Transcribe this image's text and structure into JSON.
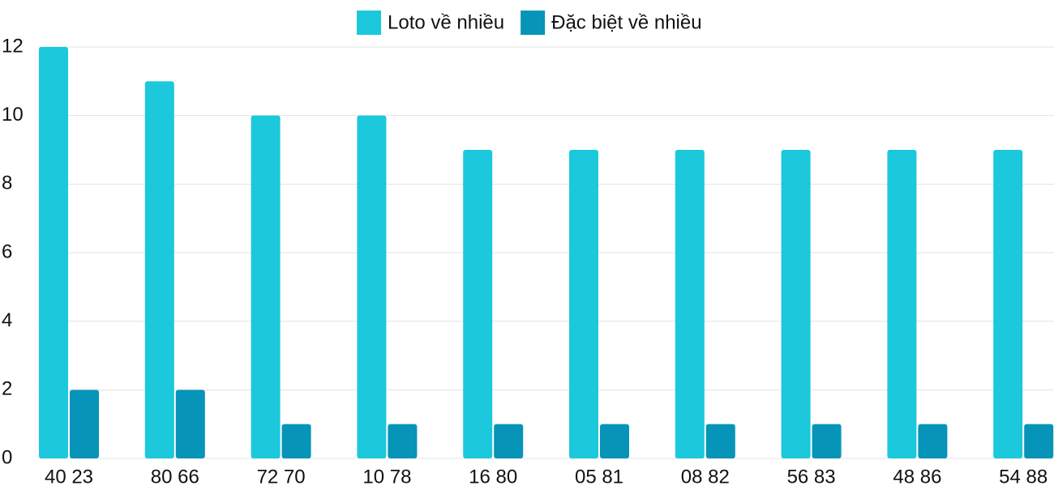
{
  "chart_data": {
    "type": "bar",
    "categories": [
      "40 23",
      "80 66",
      "72 70",
      "10 78",
      "16 80",
      "05 81",
      "08 82",
      "56 83",
      "48 86",
      "54 88"
    ],
    "series": [
      {
        "name": "Loto về nhiều",
        "color": "#1bc8dc",
        "values": [
          12,
          11,
          10,
          10,
          9,
          9,
          9,
          9,
          9,
          9
        ]
      },
      {
        "name": "Đặc biệt về nhiều",
        "color": "#0694b8",
        "values": [
          2,
          2,
          1,
          1,
          1,
          1,
          1,
          1,
          1,
          1
        ]
      }
    ],
    "ylim": [
      0,
      12
    ],
    "yticks": [
      0,
      2,
      4,
      6,
      8,
      10,
      12
    ],
    "grid": true,
    "legend": "top"
  }
}
